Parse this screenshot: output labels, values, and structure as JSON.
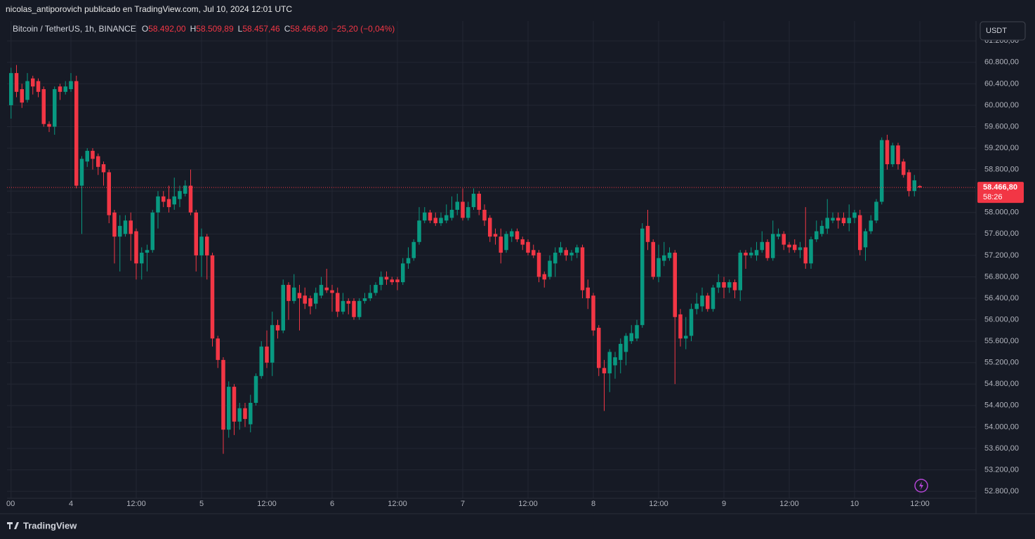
{
  "header": "nicolas_antiporovich publicado en TradingView.com, Jul 10, 2024 12:01 UTC",
  "footer": "TradingView",
  "currency_button": "USDT",
  "legend": {
    "symbol": "Bitcoin / TetherUS, 1h, BINANCE",
    "ohlc": [
      {
        "key": "O",
        "value": {
          "value": 58492,
          "label": "58.492,00"
        }
      },
      {
        "key": "H",
        "value": {
          "value": 58509.89,
          "label": "58.509,89"
        }
      },
      {
        "key": "L",
        "value": {
          "value": 58457.46,
          "label": "58.457,46"
        }
      },
      {
        "key": "C",
        "value": {
          "value": 58466.8,
          "label": "58.466,80"
        }
      }
    ],
    "change": "−25,20 (−0,04%)"
  },
  "chart_data": {
    "type": "candlestick",
    "up_color": "#089981",
    "down_color": "#f23645",
    "grid": true,
    "last_price": {
      "value": 58466.8,
      "label": "58.466,80"
    },
    "countdown": "58:26",
    "ylim": [
      52670,
      61570
    ],
    "yticks": [
      {
        "value": 61200,
        "label": "61.200,00"
      },
      {
        "value": 60800,
        "label": "60.800,00"
      },
      {
        "value": 60400,
        "label": "60.400,00"
      },
      {
        "value": 60000,
        "label": "60.000,00"
      },
      {
        "value": 59600,
        "label": "59.600,00"
      },
      {
        "value": 59200,
        "label": "59.200,00"
      },
      {
        "value": 58800,
        "label": "58.800,00"
      },
      {
        "value": 58400,
        "label": "58.400,00"
      },
      {
        "value": 58000,
        "label": "58.000,00"
      },
      {
        "value": 57600,
        "label": "57.600,00"
      },
      {
        "value": 57200,
        "label": "57.200,00"
      },
      {
        "value": 56800,
        "label": "56.800,00"
      },
      {
        "value": 56400,
        "label": "56.400,00"
      },
      {
        "value": 56000,
        "label": "56.000,00"
      },
      {
        "value": 55600,
        "label": "55.600,00"
      },
      {
        "value": 55200,
        "label": "55.200,00"
      },
      {
        "value": 54800,
        "label": "54.800,00"
      },
      {
        "value": 54400,
        "label": "54.400,00"
      },
      {
        "value": 54000,
        "label": "54.000,00"
      },
      {
        "value": 53600,
        "label": "53.600,00"
      },
      {
        "value": 53200,
        "label": "53.200,00"
      },
      {
        "value": 52800,
        "label": "52.800,00"
      }
    ],
    "categories": [
      "00",
      null,
      null,
      null,
      null,
      null,
      null,
      null,
      null,
      null,
      null,
      "4",
      null,
      null,
      null,
      null,
      null,
      null,
      null,
      null,
      null,
      null,
      null,
      "12:00",
      null,
      null,
      null,
      null,
      null,
      null,
      null,
      null,
      null,
      null,
      null,
      "5",
      null,
      null,
      null,
      null,
      null,
      null,
      null,
      null,
      null,
      null,
      null,
      "12:00",
      null,
      null,
      null,
      null,
      null,
      null,
      null,
      null,
      null,
      null,
      null,
      "6",
      null,
      null,
      null,
      null,
      null,
      null,
      null,
      null,
      null,
      null,
      null,
      "12:00",
      null,
      null,
      null,
      null,
      null,
      null,
      null,
      null,
      null,
      null,
      null,
      "7",
      null,
      null,
      null,
      null,
      null,
      null,
      null,
      null,
      null,
      null,
      null,
      "12:00",
      null,
      null,
      null,
      null,
      null,
      null,
      null,
      null,
      null,
      null,
      null,
      "8",
      null,
      null,
      null,
      null,
      null,
      null,
      null,
      null,
      null,
      null,
      null,
      "12:00",
      null,
      null,
      null,
      null,
      null,
      null,
      null,
      null,
      null,
      null,
      null,
      "9",
      null,
      null,
      null,
      null,
      null,
      null,
      null,
      null,
      null,
      null,
      null,
      "12:00",
      null,
      null,
      null,
      null,
      null,
      null,
      null,
      null,
      null,
      null,
      null,
      "10",
      null,
      null,
      null,
      null,
      null,
      null,
      null,
      null,
      null,
      null,
      null,
      "12:00"
    ],
    "open": [
      60000,
      60600,
      60300,
      60100,
      60500,
      60450,
      60300,
      59650,
      59600,
      60350,
      60250,
      60300,
      60450,
      58500,
      58950,
      59150,
      59050,
      58900,
      58750,
      58000,
      57550,
      57600,
      57850,
      57650,
      57050,
      57250,
      57300,
      58000,
      58300,
      58250,
      58150,
      58250,
      58350,
      58500,
      58000,
      57200,
      57550,
      57200,
      55650,
      55250,
      53950,
      54750,
      54100,
      54350,
      54050,
      54450,
      54950,
      55500,
      55200,
      55900,
      55800,
      56650,
      56350,
      56500,
      56450,
      56400,
      56300,
      56450,
      56600,
      56550,
      56500,
      56150,
      56350,
      56350,
      56050,
      56350,
      56400,
      56500,
      56650,
      56800,
      56750,
      56750,
      56700,
      57050,
      57150,
      57450,
      57850,
      58000,
      57900,
      57800,
      57850,
      57900,
      58050,
      58200,
      57900,
      58100,
      58350,
      58050,
      57900,
      57600,
      57550,
      57300,
      57550,
      57650,
      57500,
      57450,
      57300,
      57250,
      56850,
      56800,
      57050,
      57250,
      57300,
      57200,
      57250,
      57350,
      56600,
      56450,
      55850,
      55100,
      55000,
      55150,
      55250,
      55400,
      55600,
      55650,
      55900,
      57750,
      57450,
      56800,
      57100,
      57150,
      57250,
      56100,
      55650,
      55700,
      56200,
      56250,
      56450,
      56200,
      56600,
      56700,
      56600,
      56700,
      56550,
      57250,
      57200,
      57200,
      57300,
      57450,
      57150,
      57550,
      57600,
      57400,
      57400,
      57300,
      57350,
      57050,
      57500,
      57600,
      57700,
      57850,
      57900,
      57900,
      57800,
      57900,
      57950,
      57350,
      57650,
      57850,
      58200,
      59350,
      58900,
      59250,
      58950,
      58750,
      58400,
      58492
    ],
    "high": [
      60700,
      60750,
      60400,
      60600,
      60550,
      60500,
      60350,
      59700,
      60350,
      60400,
      60450,
      60600,
      60550,
      59050,
      59200,
      59200,
      59100,
      58950,
      58800,
      58050,
      57950,
      57950,
      58000,
      57700,
      57350,
      57400,
      58050,
      58400,
      58400,
      58500,
      58650,
      58500,
      58600,
      58800,
      58050,
      57700,
      57600,
      57250,
      55700,
      55300,
      54850,
      54800,
      54450,
      54450,
      54600,
      55000,
      55600,
      55800,
      56150,
      56000,
      56750,
      56700,
      56850,
      56650,
      56600,
      56450,
      56600,
      56800,
      56950,
      56650,
      56600,
      56500,
      56400,
      56400,
      56400,
      56500,
      56650,
      56700,
      56900,
      56900,
      56800,
      56800,
      57150,
      57350,
      57500,
      58100,
      58100,
      58050,
      58000,
      58000,
      58150,
      58300,
      58350,
      58450,
      58200,
      58450,
      58400,
      58150,
      57950,
      57700,
      57700,
      57650,
      57700,
      57700,
      57550,
      57500,
      57400,
      57300,
      56900,
      57200,
      57350,
      57450,
      57350,
      57300,
      57400,
      57400,
      56750,
      56500,
      55900,
      55250,
      55450,
      55400,
      55650,
      55750,
      55900,
      56000,
      57800,
      58050,
      57500,
      57400,
      57450,
      57350,
      57300,
      56200,
      56050,
      56300,
      56500,
      56600,
      56500,
      56650,
      56850,
      56800,
      56750,
      56750,
      57300,
      57300,
      57350,
      57450,
      57650,
      57500,
      57850,
      57700,
      57650,
      57450,
      57500,
      57450,
      58100,
      57550,
      57850,
      57850,
      58250,
      58000,
      58000,
      58000,
      58150,
      58050,
      58050,
      57700,
      57950,
      58250,
      59400,
      59450,
      59300,
      59300,
      59000,
      58800,
      58700,
      58509.89
    ],
    "low": [
      59750,
      60150,
      59950,
      60050,
      60200,
      60150,
      59600,
      59500,
      59450,
      60100,
      60200,
      60250,
      58450,
      57600,
      58850,
      58800,
      58700,
      58500,
      57800,
      57050,
      56900,
      57550,
      57100,
      56750,
      56750,
      56900,
      57250,
      57700,
      58100,
      58000,
      58050,
      58100,
      58300,
      57950,
      56900,
      56800,
      56750,
      55500,
      55100,
      53500,
      53800,
      53850,
      53950,
      54000,
      53900,
      54400,
      54900,
      55100,
      54950,
      55650,
      55750,
      56000,
      56300,
      55800,
      56200,
      56100,
      56200,
      56400,
      56500,
      56150,
      56050,
      56100,
      56100,
      56000,
      56000,
      56300,
      56350,
      56450,
      56550,
      56650,
      56650,
      56550,
      56650,
      56950,
      57100,
      57400,
      57800,
      57800,
      57750,
      57750,
      57800,
      57850,
      57950,
      57850,
      57850,
      58050,
      57950,
      57750,
      57450,
      57400,
      57050,
      57250,
      57450,
      57450,
      57300,
      57200,
      57150,
      56700,
      56600,
      56750,
      56800,
      57200,
      57100,
      57100,
      57150,
      56400,
      56200,
      55700,
      54950,
      54300,
      54650,
      54900,
      55000,
      55150,
      55550,
      55600,
      55850,
      57300,
      56750,
      56700,
      57000,
      57100,
      54800,
      55500,
      55450,
      55600,
      56100,
      56150,
      56150,
      56150,
      56500,
      56400,
      56500,
      56400,
      56350,
      56950,
      57150,
      57100,
      57250,
      57100,
      57100,
      57500,
      57300,
      57250,
      57250,
      57150,
      56950,
      56950,
      57450,
      57550,
      57600,
      57800,
      57700,
      57750,
      57650,
      57800,
      57200,
      57100,
      57600,
      57800,
      58150,
      58800,
      58850,
      58800,
      58650,
      58300,
      58300,
      58457.46
    ],
    "close": [
      60600,
      60250,
      60050,
      60450,
      60350,
      60250,
      59650,
      59600,
      60300,
      60250,
      60350,
      60450,
      58500,
      59000,
      59150,
      59000,
      58850,
      58750,
      57950,
      57550,
      57750,
      57850,
      57600,
      57050,
      57250,
      57300,
      58000,
      58300,
      58200,
      58100,
      58300,
      58400,
      58500,
      58000,
      57200,
      57550,
      57200,
      55650,
      55250,
      53950,
      54750,
      54100,
      54350,
      54150,
      54450,
      54950,
      55500,
      55200,
      55900,
      55800,
      56650,
      56350,
      56600,
      56400,
      56300,
      56250,
      56500,
      56650,
      56550,
      56500,
      56150,
      56350,
      56300,
      56050,
      56350,
      56400,
      56500,
      56650,
      56800,
      56750,
      56700,
      56700,
      57050,
      57150,
      57450,
      57850,
      58000,
      57850,
      57800,
      57900,
      57950,
      58050,
      58200,
      57900,
      58100,
      58350,
      58050,
      57850,
      57550,
      57550,
      57250,
      57600,
      57650,
      57500,
      57400,
      57250,
      57200,
      56800,
      56750,
      57100,
      57250,
      57350,
      57200,
      57250,
      57350,
      56550,
      56400,
      55800,
      55100,
      55000,
      55400,
      55300,
      55550,
      55700,
      55750,
      55900,
      57700,
      57450,
      56800,
      57150,
      57200,
      57250,
      56050,
      55650,
      55700,
      56200,
      56300,
      56450,
      56200,
      56600,
      56700,
      56600,
      56700,
      56550,
      57250,
      57200,
      57250,
      57300,
      57450,
      57150,
      57600,
      57600,
      57400,
      57350,
      57300,
      57350,
      57050,
      57500,
      57650,
      57750,
      57900,
      57900,
      57850,
      57800,
      57900,
      58000,
      57300,
      57650,
      57850,
      58200,
      59350,
      58900,
      59250,
      58900,
      58700,
      58400,
      58600,
      58466.8
    ]
  }
}
